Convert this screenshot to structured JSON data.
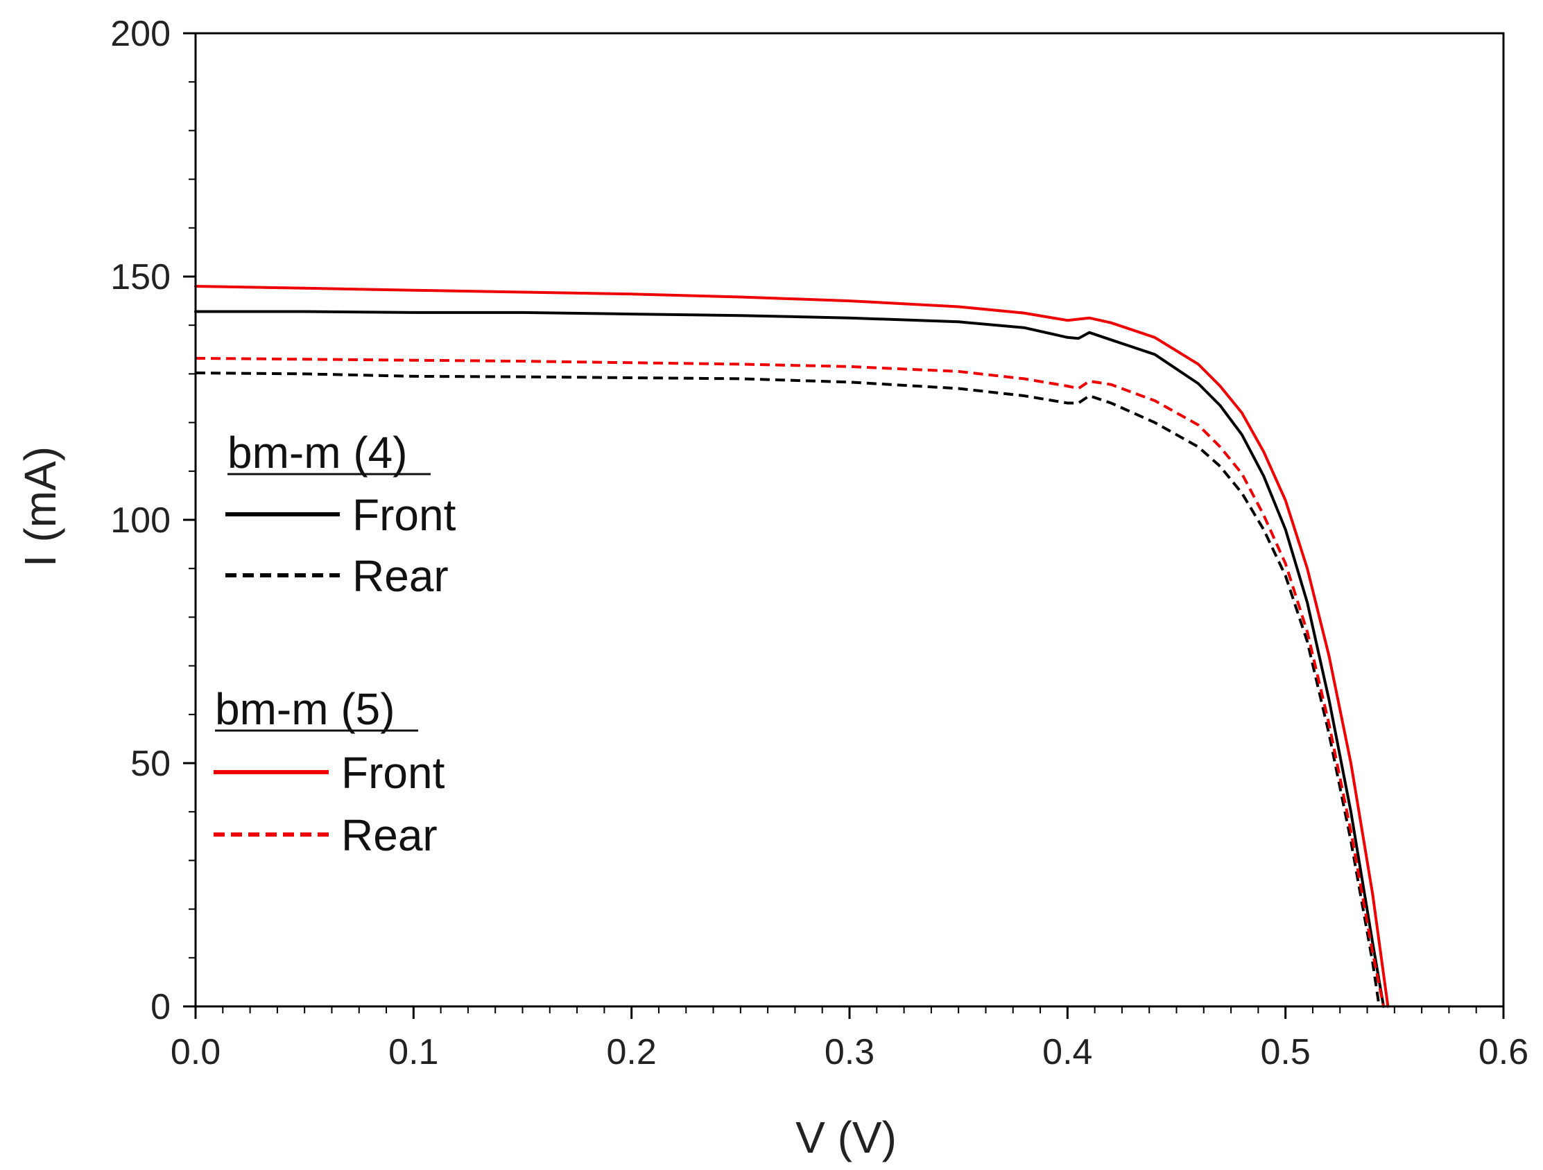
{
  "chart_data": {
    "type": "line",
    "title": "",
    "xlabel": "V (V)",
    "ylabel": "I (mA)",
    "xlim": [
      0.0,
      0.6
    ],
    "ylim": [
      0,
      200
    ],
    "x_ticks": [
      "0.0",
      "0.1",
      "0.2",
      "0.3",
      "0.4",
      "0.5",
      "0.6"
    ],
    "y_ticks": [
      "0",
      "50",
      "100",
      "150",
      "200"
    ],
    "grid": false,
    "legend_groups": [
      {
        "title": "bm-m (4)",
        "entries": [
          "Front",
          "Rear"
        ]
      },
      {
        "title": "bm-m (5)",
        "entries": [
          "Front",
          "Rear"
        ]
      }
    ],
    "series": [
      {
        "name": "bm-m (4) Front",
        "group": "bm-m (4)",
        "entry": "Front",
        "color": "#000000",
        "dash": "solid",
        "x": [
          0.0,
          0.05,
          0.1,
          0.15,
          0.2,
          0.25,
          0.3,
          0.35,
          0.38,
          0.4,
          0.405,
          0.41,
          0.42,
          0.44,
          0.46,
          0.47,
          0.48,
          0.49,
          0.5,
          0.51,
          0.52,
          0.53,
          0.54,
          0.545
        ],
        "y": [
          142.8,
          142.8,
          142.6,
          142.6,
          142.3,
          142.0,
          141.5,
          140.7,
          139.5,
          137.5,
          137.3,
          138.5,
          137.0,
          134.0,
          128.0,
          123.5,
          117.5,
          109.0,
          98.0,
          83.0,
          63.0,
          40.0,
          13.0,
          0
        ]
      },
      {
        "name": "bm-m (4) Rear",
        "group": "bm-m (4)",
        "entry": "Rear",
        "color": "#000000",
        "dash": "dashed",
        "x": [
          0.0,
          0.05,
          0.1,
          0.15,
          0.2,
          0.25,
          0.3,
          0.35,
          0.38,
          0.4,
          0.405,
          0.41,
          0.42,
          0.44,
          0.46,
          0.47,
          0.48,
          0.49,
          0.5,
          0.51,
          0.52,
          0.53,
          0.54,
          0.543
        ],
        "y": [
          130.2,
          130.0,
          129.5,
          129.4,
          129.2,
          129.0,
          128.3,
          127.0,
          125.5,
          124.0,
          124.0,
          125.5,
          124.0,
          120.0,
          115.0,
          111.0,
          105.5,
          98.0,
          88.5,
          75.0,
          56.0,
          34.0,
          9.0,
          0
        ]
      },
      {
        "name": "bm-m (5) Front",
        "group": "bm-m (5)",
        "entry": "Front",
        "color": "#ee0000",
        "dash": "solid",
        "x": [
          0.0,
          0.05,
          0.1,
          0.15,
          0.2,
          0.25,
          0.3,
          0.35,
          0.38,
          0.4,
          0.41,
          0.42,
          0.44,
          0.46,
          0.47,
          0.48,
          0.49,
          0.5,
          0.51,
          0.52,
          0.53,
          0.54,
          0.547
        ],
        "y": [
          148.0,
          147.6,
          147.2,
          146.8,
          146.4,
          145.8,
          145.0,
          143.8,
          142.5,
          141.0,
          141.5,
          140.5,
          137.5,
          132.0,
          127.5,
          122.0,
          114.0,
          104.0,
          90.0,
          72.0,
          50.0,
          23.0,
          0
        ]
      },
      {
        "name": "bm-m (5) Rear",
        "group": "bm-m (5)",
        "entry": "Rear",
        "color": "#ee0000",
        "dash": "dashed",
        "x": [
          0.0,
          0.05,
          0.1,
          0.15,
          0.2,
          0.25,
          0.3,
          0.35,
          0.38,
          0.4,
          0.405,
          0.41,
          0.42,
          0.44,
          0.46,
          0.47,
          0.48,
          0.49,
          0.5,
          0.51,
          0.52,
          0.53,
          0.54,
          0.545
        ],
        "y": [
          133.2,
          133.0,
          132.8,
          132.6,
          132.3,
          132.0,
          131.5,
          130.5,
          129.0,
          127.5,
          127.0,
          128.5,
          127.8,
          124.5,
          119.5,
          115.0,
          109.5,
          101.0,
          91.0,
          77.0,
          58.0,
          36.0,
          11.0,
          0
        ]
      }
    ]
  }
}
